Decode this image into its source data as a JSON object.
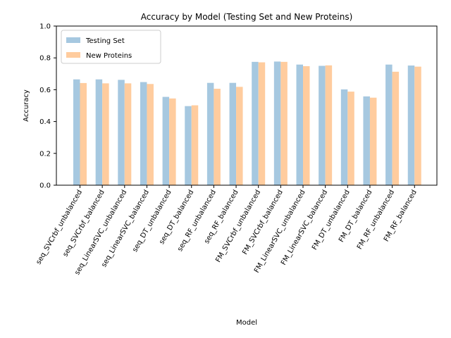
{
  "chart_data": {
    "type": "bar",
    "title": "Accuracy by Model (Testing Set and New Proteins)",
    "xlabel": "Model",
    "ylabel": "Accuracy",
    "ylim": [
      0,
      1.0
    ],
    "yticks": [
      "0.0",
      "0.2",
      "0.4",
      "0.6",
      "0.8",
      "1.0"
    ],
    "grid": false,
    "legend_position": "top-left",
    "categories": [
      "seq_SVCrbf_unbalanced",
      "seq_SVCrbf_balanced",
      "seq_LinearSVC_unbalanced",
      "seq_LinearSVC_balanced",
      "seq_DT_unbalanced",
      "seq_DT_balanced",
      "seq_RF_unbalanced",
      "seq_RF_balanced",
      "FM_SVCrbf_unbalanced",
      "FM_SVCrbf_balanced",
      "FM_LinearSVC_unbalanced",
      "FM_LinearSVC_balanced",
      "FM_DT_unbalanced",
      "FM_DT_balanced",
      "FM_RF_unbalanced",
      "FM_RF_balanced"
    ],
    "series": [
      {
        "name": "Testing Set",
        "color": "#a6c8e0",
        "values": [
          0.665,
          0.665,
          0.662,
          0.648,
          0.555,
          0.497,
          0.643,
          0.643,
          0.775,
          0.777,
          0.758,
          0.75,
          0.602,
          0.558,
          0.758,
          0.752
        ]
      },
      {
        "name": "New Proteins",
        "color": "#ffcc9e",
        "values": [
          0.642,
          0.64,
          0.64,
          0.636,
          0.545,
          0.502,
          0.606,
          0.618,
          0.772,
          0.775,
          0.748,
          0.753,
          0.588,
          0.55,
          0.713,
          0.745
        ]
      }
    ]
  }
}
